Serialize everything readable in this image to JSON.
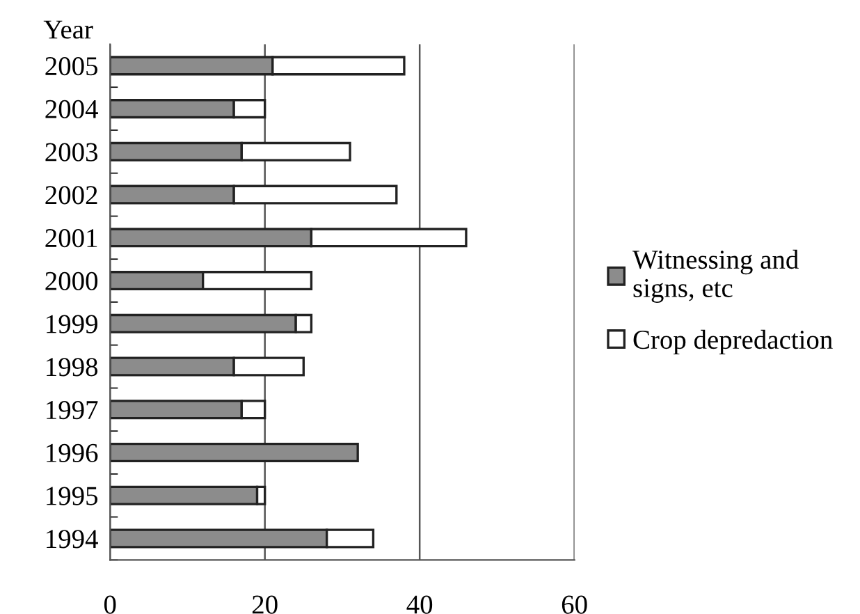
{
  "chart_data": {
    "type": "bar",
    "orientation": "horizontal",
    "stacked": true,
    "ylabel": "Year",
    "categories": [
      "2005",
      "2004",
      "2003",
      "2002",
      "2001",
      "2000",
      "1999",
      "1998",
      "1997",
      "1996",
      "1995",
      "1994"
    ],
    "series": [
      {
        "name": "Witnessing and\nsigns, etc",
        "color": "#8c8c8c",
        "values": [
          21,
          16,
          17,
          16,
          26,
          12,
          24,
          16,
          17,
          32,
          19,
          28
        ]
      },
      {
        "name": "Crop depredaction",
        "color": "#ffffff",
        "values": [
          17,
          4,
          14,
          21,
          20,
          14,
          2,
          9,
          3,
          0,
          1,
          6
        ]
      }
    ],
    "xlim": [
      0,
      60
    ],
    "xticks": [
      0,
      20,
      40,
      60
    ],
    "grid": "x",
    "legend": "right"
  }
}
